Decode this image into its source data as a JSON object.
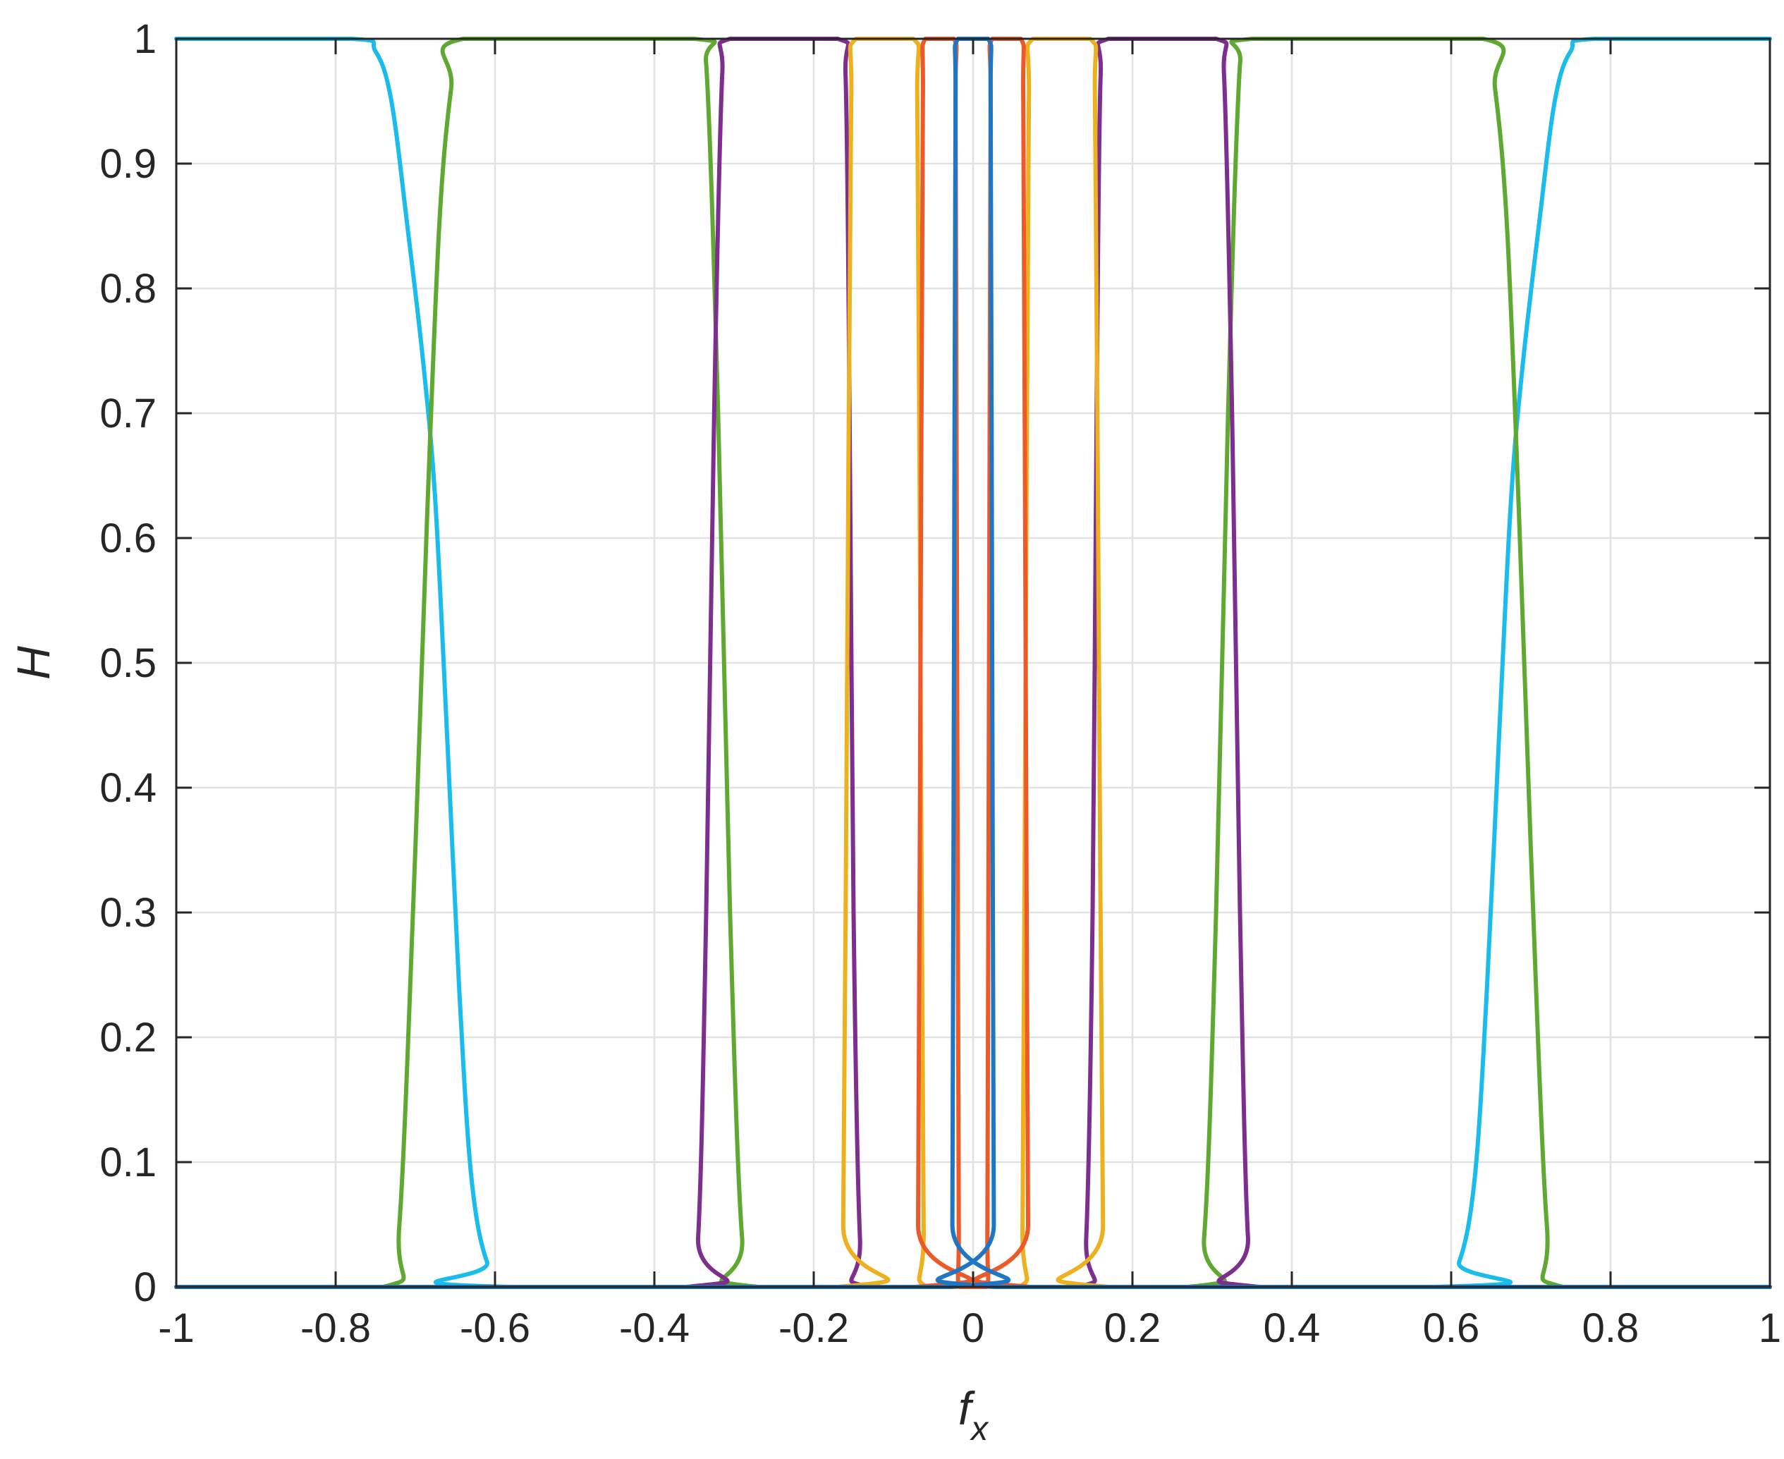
{
  "chart_data": {
    "type": "line",
    "title": "",
    "xlabel": {
      "main": "f",
      "subscript": "x"
    },
    "ylabel": "H",
    "xlim": [
      -1,
      1
    ],
    "ylim": [
      0,
      1
    ],
    "grid": true,
    "legend": "none",
    "xticks": [
      -1,
      -0.8,
      -0.6,
      -0.4,
      -0.2,
      0,
      0.2,
      0.4,
      0.6,
      0.8,
      1
    ],
    "yticks": [
      0,
      0.1,
      0.2,
      0.3,
      0.4,
      0.5,
      0.6,
      0.7,
      0.8,
      0.9,
      1
    ],
    "xtick_labels": [
      "-1",
      "-0.8",
      "-0.6",
      "-0.4",
      "-0.2",
      "0",
      "0.2",
      "0.4",
      "0.6",
      "0.8",
      "1"
    ],
    "ytick_labels": [
      "0",
      "0.1",
      "0.2",
      "0.3",
      "0.4",
      "0.5",
      "0.6",
      "0.7",
      "0.8",
      "0.9",
      "1"
    ],
    "series": [
      {
        "color": "#1ABCEB",
        "points": [
          [
            -1,
            1
          ],
          [
            -0.78,
            1
          ],
          [
            -0.75,
            0.99
          ],
          [
            -0.73,
            0.95
          ],
          [
            -0.71,
            0.85
          ],
          [
            -0.69,
            0.74
          ],
          [
            -0.675,
            0.63
          ],
          [
            -0.66,
            0.44
          ],
          [
            -0.645,
            0.24
          ],
          [
            -0.63,
            0.09
          ],
          [
            -0.61,
            0.02
          ],
          [
            -0.58,
            0
          ],
          [
            0.58,
            0
          ],
          [
            0.61,
            0.02
          ],
          [
            0.63,
            0.09
          ],
          [
            0.645,
            0.24
          ],
          [
            0.66,
            0.44
          ],
          [
            0.675,
            0.63
          ],
          [
            0.69,
            0.74
          ],
          [
            0.71,
            0.85
          ],
          [
            0.73,
            0.95
          ],
          [
            0.75,
            0.99
          ],
          [
            0.78,
            1
          ],
          [
            1,
            1
          ]
        ]
      },
      {
        "color": "#5FA831",
        "points": [
          [
            -1,
            0
          ],
          [
            -0.74,
            0
          ],
          [
            -0.72,
            0.05
          ],
          [
            -0.7,
            0.35
          ],
          [
            -0.685,
            0.62
          ],
          [
            -0.67,
            0.85
          ],
          [
            -0.655,
            0.96
          ],
          [
            -0.64,
            1
          ],
          [
            -0.35,
            1
          ],
          [
            -0.335,
            0.98
          ],
          [
            -0.32,
            0.7
          ],
          [
            -0.305,
            0.3
          ],
          [
            -0.29,
            0.04
          ],
          [
            -0.27,
            0
          ],
          [
            0.27,
            0
          ],
          [
            0.29,
            0.04
          ],
          [
            0.305,
            0.3
          ],
          [
            0.32,
            0.7
          ],
          [
            0.335,
            0.98
          ],
          [
            0.35,
            1
          ],
          [
            0.64,
            1
          ],
          [
            0.655,
            0.96
          ],
          [
            0.67,
            0.85
          ],
          [
            0.685,
            0.62
          ],
          [
            0.7,
            0.35
          ],
          [
            0.72,
            0.05
          ],
          [
            0.74,
            0
          ],
          [
            1,
            0
          ]
        ]
      },
      {
        "color": "#7E2F8E",
        "points": [
          [
            -1,
            0
          ],
          [
            -0.36,
            0
          ],
          [
            -0.345,
            0.04
          ],
          [
            -0.335,
            0.3
          ],
          [
            -0.325,
            0.7
          ],
          [
            -0.315,
            0.97
          ],
          [
            -0.305,
            1
          ],
          [
            -0.17,
            1
          ],
          [
            -0.16,
            0.97
          ],
          [
            -0.155,
            0.7
          ],
          [
            -0.15,
            0.3
          ],
          [
            -0.142,
            0.04
          ],
          [
            -0.13,
            0
          ],
          [
            0.13,
            0
          ],
          [
            0.142,
            0.04
          ],
          [
            0.15,
            0.3
          ],
          [
            0.155,
            0.7
          ],
          [
            0.16,
            0.97
          ],
          [
            0.17,
            1
          ],
          [
            0.305,
            1
          ],
          [
            0.315,
            0.97
          ],
          [
            0.325,
            0.7
          ],
          [
            0.335,
            0.3
          ],
          [
            0.345,
            0.04
          ],
          [
            0.36,
            0
          ],
          [
            1,
            0
          ]
        ]
      },
      {
        "color": "#EDB120",
        "points": [
          [
            -1,
            0
          ],
          [
            -0.17,
            0
          ],
          [
            -0.163,
            0.05
          ],
          [
            -0.158,
            0.5
          ],
          [
            -0.153,
            0.95
          ],
          [
            -0.147,
            1
          ],
          [
            -0.075,
            1
          ],
          [
            -0.07,
            0.95
          ],
          [
            -0.066,
            0.5
          ],
          [
            -0.062,
            0.05
          ],
          [
            -0.058,
            0
          ],
          [
            0.058,
            0
          ],
          [
            0.062,
            0.05
          ],
          [
            0.066,
            0.5
          ],
          [
            0.07,
            0.95
          ],
          [
            0.075,
            1
          ],
          [
            0.147,
            1
          ],
          [
            0.153,
            0.95
          ],
          [
            0.158,
            0.5
          ],
          [
            0.163,
            0.05
          ],
          [
            0.17,
            0
          ],
          [
            1,
            0
          ]
        ]
      },
      {
        "color": "#ED5A2A",
        "points": [
          [
            -1,
            0
          ],
          [
            -0.072,
            0
          ],
          [
            -0.069,
            0.05
          ],
          [
            -0.066,
            0.5
          ],
          [
            -0.063,
            0.95
          ],
          [
            -0.06,
            1
          ],
          [
            -0.024,
            1
          ],
          [
            -0.022,
            0.95
          ],
          [
            -0.02,
            0.5
          ],
          [
            -0.018,
            0.05
          ],
          [
            -0.016,
            0
          ],
          [
            0.016,
            0
          ],
          [
            0.018,
            0.05
          ],
          [
            0.02,
            0.5
          ],
          [
            0.022,
            0.95
          ],
          [
            0.024,
            1
          ],
          [
            0.06,
            1
          ],
          [
            0.063,
            0.95
          ],
          [
            0.066,
            0.5
          ],
          [
            0.069,
            0.05
          ],
          [
            0.072,
            0
          ],
          [
            1,
            0
          ]
        ]
      },
      {
        "color": "#1F77C4",
        "points": [
          [
            -1,
            0
          ],
          [
            -0.028,
            0
          ],
          [
            -0.026,
            0.05
          ],
          [
            -0.024,
            0.5
          ],
          [
            -0.022,
            0.95
          ],
          [
            -0.019,
            1
          ],
          [
            0.019,
            1
          ],
          [
            0.022,
            0.95
          ],
          [
            0.024,
            0.5
          ],
          [
            0.026,
            0.05
          ],
          [
            0.028,
            0
          ],
          [
            1,
            0
          ]
        ]
      }
    ]
  }
}
